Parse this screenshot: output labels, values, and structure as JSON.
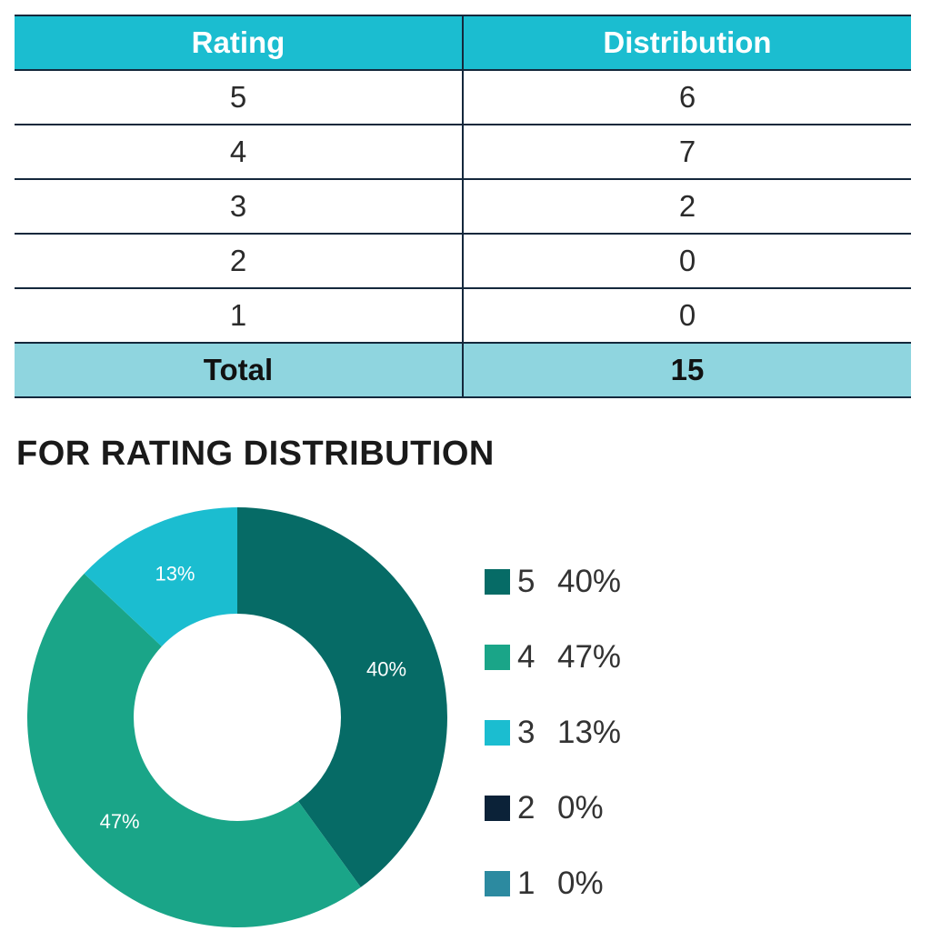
{
  "table": {
    "headers": [
      "Rating",
      "Distribution"
    ],
    "rows": [
      {
        "rating": "5",
        "count": "6"
      },
      {
        "rating": "4",
        "count": "7"
      },
      {
        "rating": "3",
        "count": "2"
      },
      {
        "rating": "2",
        "count": "0"
      },
      {
        "rating": "1",
        "count": "0"
      }
    ],
    "total_label": "Total",
    "total_value": "15"
  },
  "section_title": "FOR RATING DISTRIBUTION",
  "chart_data": {
    "type": "pie",
    "donut": true,
    "categories": [
      "5",
      "4",
      "3",
      "2",
      "1"
    ],
    "values": [
      40,
      47,
      13,
      0,
      0
    ],
    "percent_labels": [
      "40%",
      "47%",
      "13%",
      "0%",
      "0%"
    ],
    "colors": [
      "#066b66",
      "#1aa588",
      "#1bbdd0",
      "#0b2238",
      "#2c8aa0"
    ],
    "legend_position": "right"
  }
}
